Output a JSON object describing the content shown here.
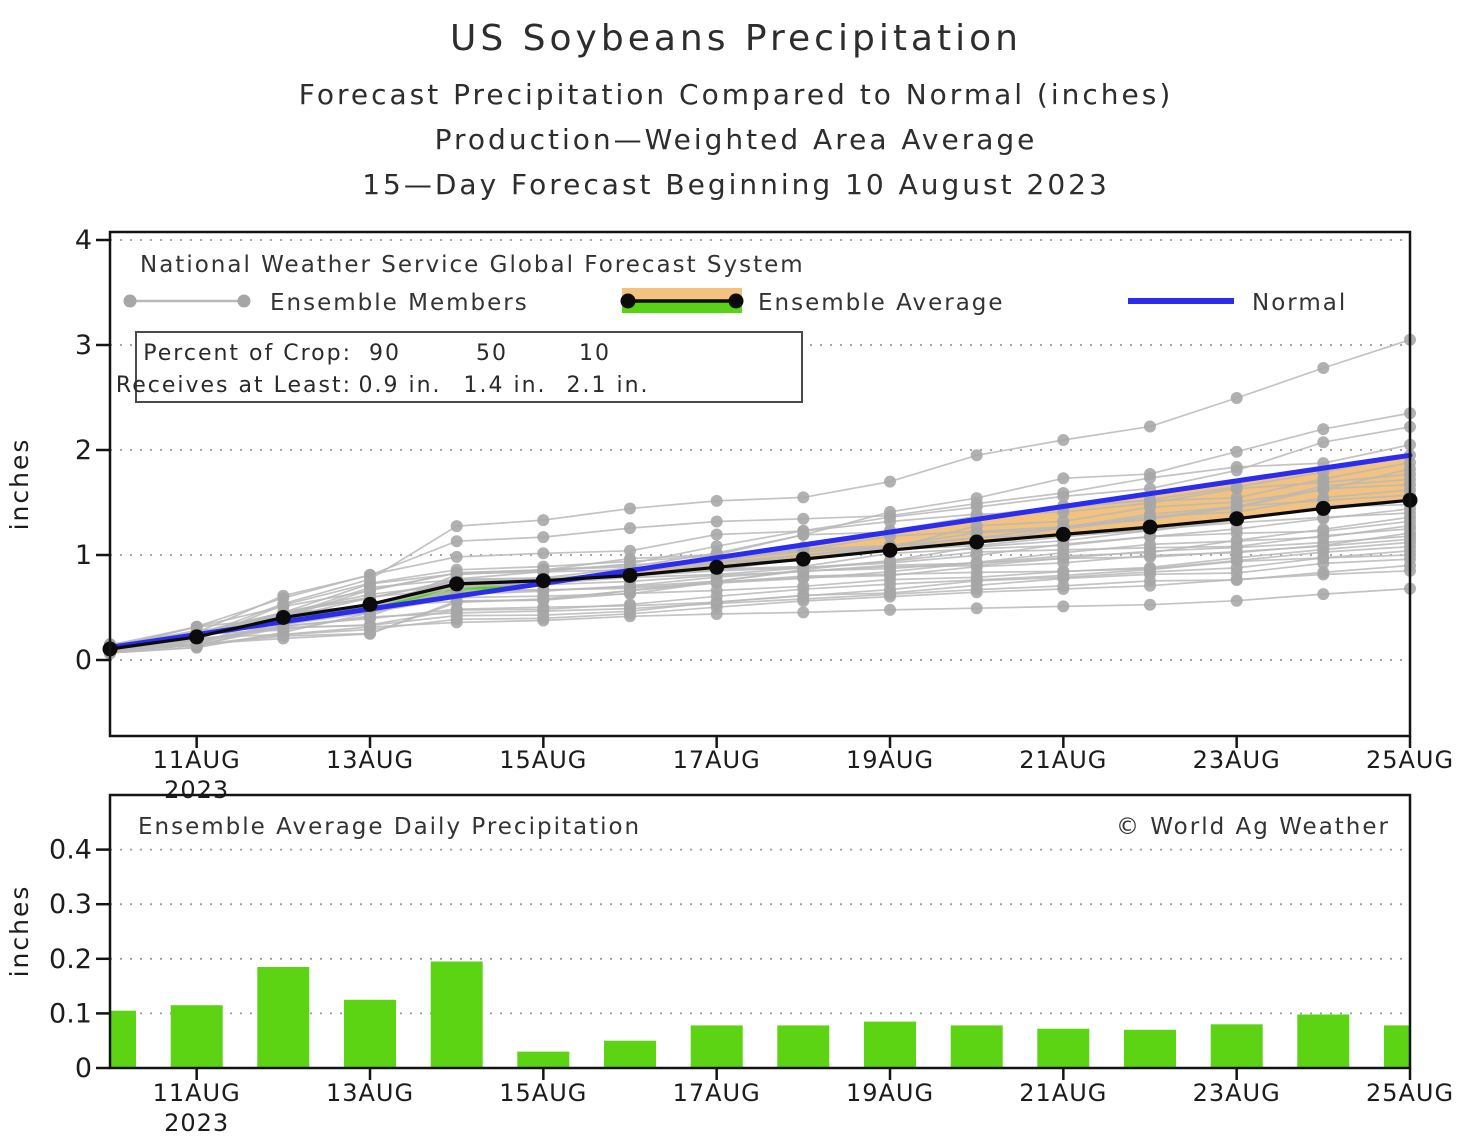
{
  "title": {
    "line1": "US Soybeans Precipitation",
    "line2": "Forecast Precipitation Compared to Normal (inches)",
    "line3": "Production—Weighted Area Average",
    "line4": "15—Day Forecast Beginning 10 August 2023"
  },
  "top_chart": {
    "source_label": "National Weather Service Global Forecast System",
    "legend": {
      "members_label": "Ensemble Members",
      "average_label": "Ensemble Average",
      "normal_label": "Normal"
    },
    "percent_box": {
      "row1_label": "Percent of Crop:",
      "row1_values": [
        "90",
        "50",
        "10"
      ],
      "row2_label": "Receives at Least:",
      "row2_values": [
        "0.9 in.",
        "1.4 in.",
        "2.1 in."
      ]
    },
    "ylabel": "inches"
  },
  "bottom_chart": {
    "title": "Ensemble Average Daily Precipitation",
    "credit": "© World Ag Weather",
    "ylabel": "inches"
  },
  "chart_data": [
    {
      "type": "line",
      "title": "Forecast cumulative precipitation compared to normal, production-weighted area average",
      "x_days": [
        "10AUG",
        "11AUG",
        "12AUG",
        "13AUG",
        "14AUG",
        "15AUG",
        "16AUG",
        "17AUG",
        "18AUG",
        "19AUG",
        "20AUG",
        "21AUG",
        "22AUG",
        "23AUG",
        "24AUG",
        "25AUG"
      ],
      "xtick_labels": [
        "11AUG",
        "13AUG",
        "15AUG",
        "17AUG",
        "19AUG",
        "21AUG",
        "23AUG",
        "25AUG"
      ],
      "xtick_year": "2023",
      "ylabel": "inches",
      "ylim": [
        -0.72,
        4.12
      ],
      "yticks": [
        0,
        1,
        2,
        3,
        4
      ],
      "grid": "dotted-horizontal",
      "legend_position": "top-left-inside",
      "series": [
        {
          "name": "Ensemble Average",
          "color": "#0b0b0b",
          "marker": "dot",
          "values": [
            0.105,
            0.22,
            0.405,
            0.53,
            0.725,
            0.755,
            0.805,
            0.883,
            0.961,
            1.046,
            1.124,
            1.196,
            1.266,
            1.346,
            1.444,
            1.522
          ]
        },
        {
          "name": "Normal",
          "color": "#2a2cf0",
          "marker": "none",
          "values": [
            0.12,
            0.242,
            0.364,
            0.486,
            0.608,
            0.73,
            0.852,
            0.974,
            1.096,
            1.218,
            1.34,
            1.462,
            1.584,
            1.706,
            1.828,
            1.95
          ]
        }
      ],
      "fill_between": {
        "surplus_color": "#57d313",
        "deficit_color": "#f2c27e",
        "description": "green where average is above normal, orange where average is below normal"
      },
      "ensemble_members": {
        "count": 31,
        "line_color": "#b9b9b9",
        "dot_color": "#a6a6a6",
        "start_value": 0.105,
        "final_values": [
          0.68,
          0.85,
          0.9,
          0.96,
          1.0,
          1.04,
          1.08,
          1.12,
          1.15,
          1.18,
          1.21,
          1.25,
          1.28,
          1.32,
          1.36,
          1.4,
          1.44,
          1.48,
          1.52,
          1.57,
          1.62,
          1.67,
          1.72,
          1.77,
          1.82,
          1.88,
          1.95,
          2.05,
          2.22,
          2.35,
          3.05
        ]
      }
    },
    {
      "type": "bar",
      "title": "Ensemble Average Daily Precipitation",
      "categories": [
        "10AUG",
        "11AUG",
        "12AUG",
        "13AUG",
        "14AUG",
        "15AUG",
        "16AUG",
        "17AUG",
        "18AUG",
        "19AUG",
        "20AUG",
        "21AUG",
        "22AUG",
        "23AUG",
        "24AUG",
        "25AUG"
      ],
      "values": [
        0.105,
        0.115,
        0.185,
        0.125,
        0.195,
        0.03,
        0.05,
        0.078,
        0.078,
        0.085,
        0.078,
        0.072,
        0.07,
        0.08,
        0.098,
        0.078
      ],
      "bar_color": "#5cd313",
      "xtick_labels": [
        "11AUG",
        "13AUG",
        "15AUG",
        "17AUG",
        "19AUG",
        "21AUG",
        "23AUG",
        "25AUG"
      ],
      "xtick_year": "2023",
      "ylabel": "inches",
      "ylim": [
        0,
        0.49
      ],
      "yticks": [
        0,
        0.1,
        0.2,
        0.3,
        0.4
      ],
      "grid": "dotted-horizontal"
    }
  ]
}
